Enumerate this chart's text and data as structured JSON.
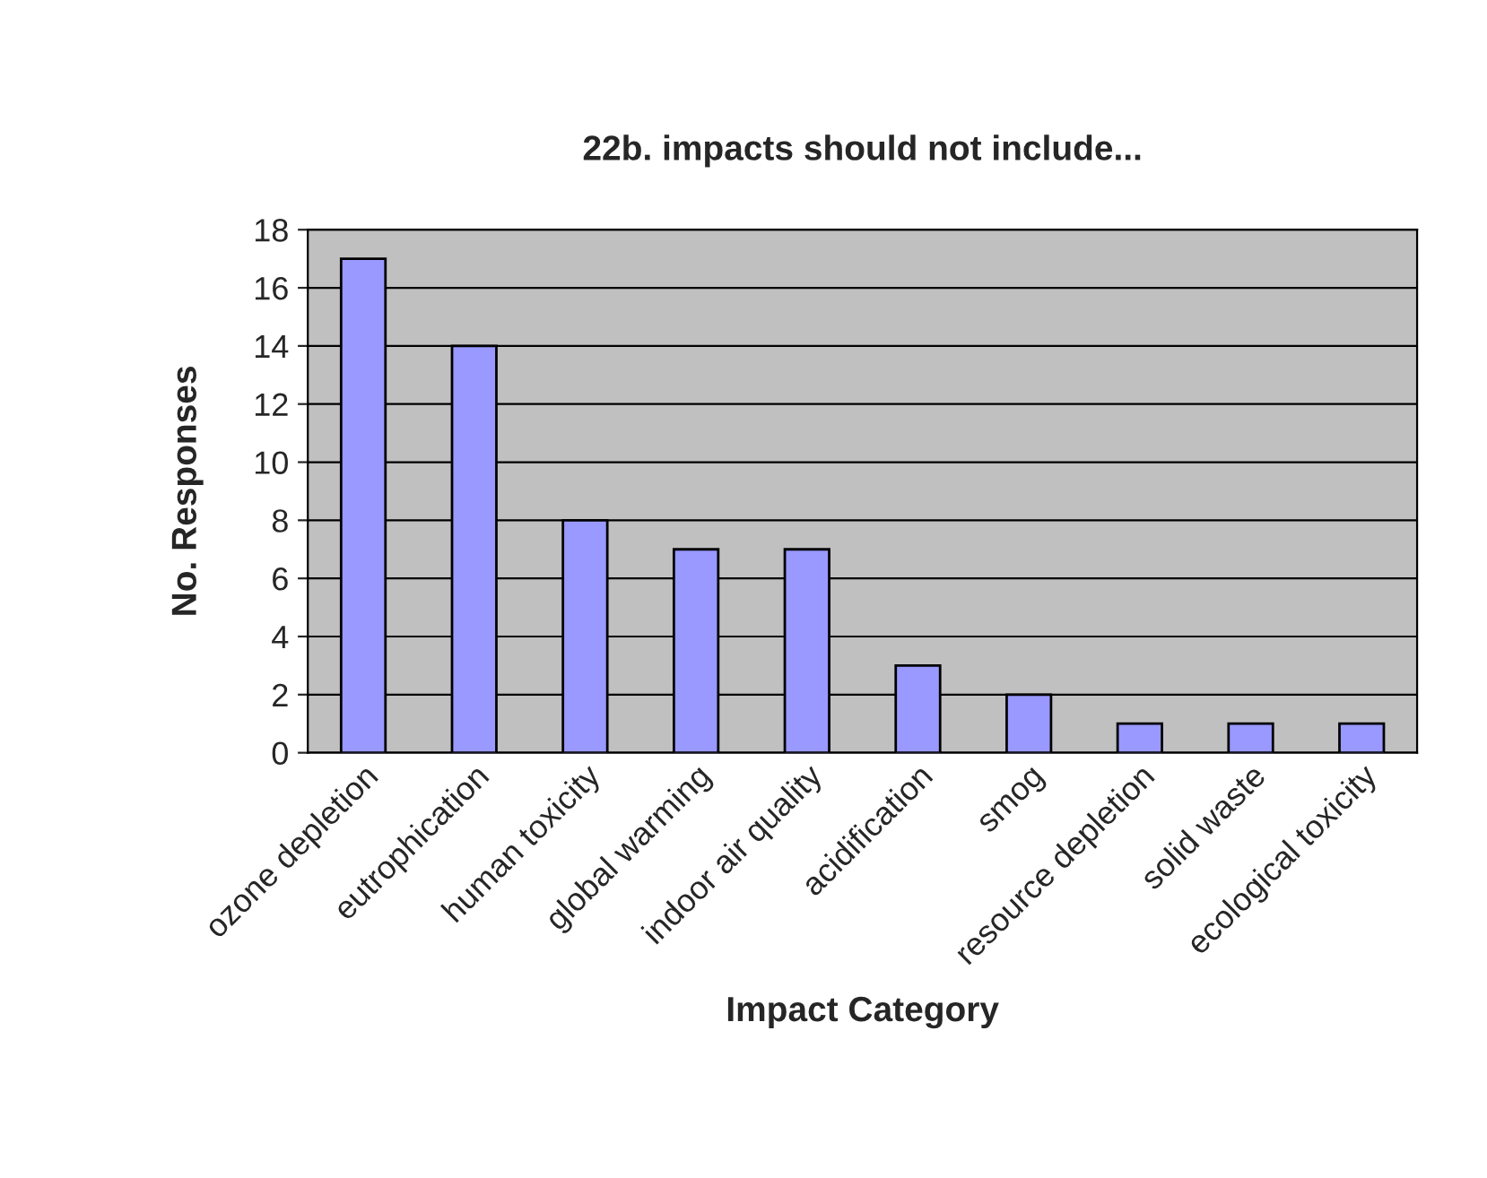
{
  "chart_data": {
    "type": "bar",
    "title": "22b. impacts should not include...",
    "xlabel": "Impact Category",
    "ylabel": "No. Responses",
    "categories": [
      "ozone depletion",
      "eutrophication",
      "human toxicity",
      "global warming",
      "indoor air quality",
      "acidification",
      "smog",
      "resource depletion",
      "solid waste",
      "ecological toxicity"
    ],
    "values": [
      17,
      14,
      8,
      7,
      7,
      3,
      2,
      1,
      1,
      1
    ],
    "color": "#9999ff",
    "ylim": [
      0,
      18
    ],
    "yticks": [
      0,
      2,
      4,
      6,
      8,
      10,
      12,
      14,
      16,
      18
    ],
    "grid": "y"
  }
}
